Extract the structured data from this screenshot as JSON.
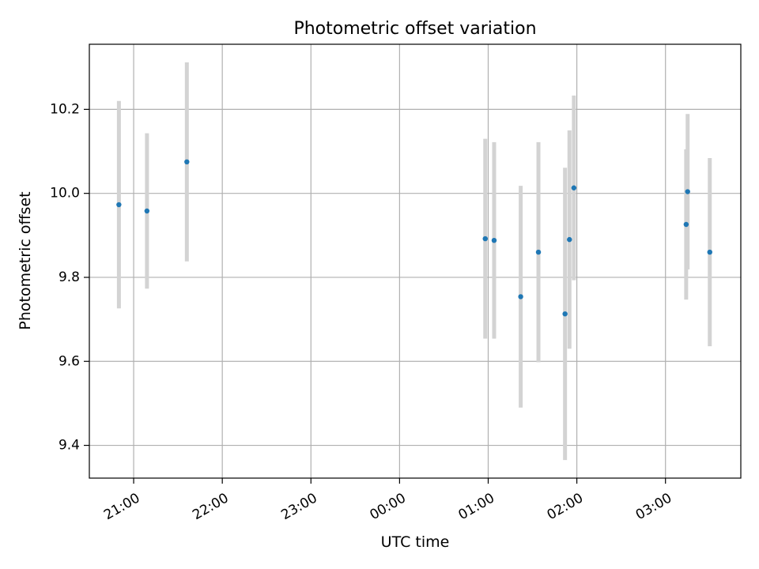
{
  "chart_data": {
    "type": "scatter",
    "title": "Photometric offset variation",
    "xlabel": "UTC time",
    "ylabel": "Photometric offset",
    "grid": true,
    "x_tick_labels": [
      "21:00",
      "22:00",
      "23:00",
      "00:00",
      "01:00",
      "02:00",
      "03:00"
    ],
    "y_tick_labels": [
      "9.4",
      "9.6",
      "9.8",
      "10.0",
      "10.2"
    ],
    "y_ticks": [
      9.4,
      9.6,
      9.8,
      10.0,
      10.2
    ],
    "xlim": [
      "20:30",
      "03:51"
    ],
    "ylim": [
      9.322,
      10.355
    ],
    "series": [
      {
        "marker_color": "#1f77b4",
        "errorbar_color": "#d3d3d3",
        "points": [
          {
            "x": "20:50",
            "y": 9.973,
            "err": 0.247
          },
          {
            "x": "21:09",
            "y": 9.958,
            "err": 0.185
          },
          {
            "x": "21:36",
            "y": 10.075,
            "err": 0.237
          },
          {
            "x": "00:58",
            "y": 9.892,
            "err": 0.238
          },
          {
            "x": "01:04",
            "y": 9.888,
            "err": 0.234
          },
          {
            "x": "01:22",
            "y": 9.754,
            "err": 0.264
          },
          {
            "x": "01:34",
            "y": 9.86,
            "err": 0.262
          },
          {
            "x": "01:52",
            "y": 9.713,
            "err": 0.348
          },
          {
            "x": "01:55",
            "y": 9.89,
            "err": 0.26
          },
          {
            "x": "01:58",
            "y": 10.013,
            "err": 0.22
          },
          {
            "x": "03:14",
            "y": 9.926,
            "err": 0.179
          },
          {
            "x": "03:15",
            "y": 10.004,
            "err": 0.185
          },
          {
            "x": "03:30",
            "y": 9.86,
            "err": 0.224
          }
        ]
      }
    ]
  }
}
